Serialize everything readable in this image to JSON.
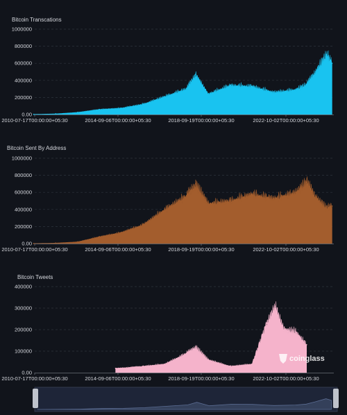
{
  "brand": {
    "watermark": "coinglass"
  },
  "chart_data": [
    {
      "type": "area",
      "title": "Bitcoin Transcations",
      "color": "#19c3f0",
      "ylim": [
        0,
        1000000
      ],
      "yticks": [
        "0.00",
        "200000",
        "400000",
        "600000",
        "800000",
        "1000000"
      ],
      "xticks": [
        "2010-07-17T00:00:00+05:30",
        "2014-09-06T00:00:00+05:30",
        "2018-09-19T00:00:00+05:30",
        "2022-10-02T00:00:00+05:30"
      ],
      "x": [
        "2010-07",
        "2011-07",
        "2012-07",
        "2013-07",
        "2014-07",
        "2015-07",
        "2016-07",
        "2017-07",
        "2017-12",
        "2018-07",
        "2019-07",
        "2020-07",
        "2021-07",
        "2022-07",
        "2023-01",
        "2023-06",
        "2023-12",
        "2024-03"
      ],
      "values": [
        2000,
        8000,
        25000,
        60000,
        75000,
        120000,
        210000,
        300000,
        470000,
        240000,
        340000,
        330000,
        260000,
        290000,
        350000,
        500000,
        700000,
        600000
      ]
    },
    {
      "type": "area",
      "title": "Bitcoin Sent By Address",
      "color": "#a35d2d",
      "ylim": [
        0,
        1000000
      ],
      "yticks": [
        "0.00",
        "200000",
        "400000",
        "600000",
        "800000",
        "1000000"
      ],
      "xticks": [
        "2010-07-17T00:00:00+05:30",
        "2014-09-06T00:00:00+05:30",
        "2018-09-19T00:00:00+05:30",
        "2022-10-02T00:00:00+05:30"
      ],
      "x": [
        "2010-07",
        "2011-07",
        "2012-07",
        "2013-07",
        "2014-07",
        "2015-07",
        "2016-07",
        "2017-07",
        "2017-12",
        "2018-07",
        "2019-07",
        "2020-07",
        "2021-07",
        "2022-07",
        "2023-01",
        "2023-06",
        "2023-12",
        "2024-03"
      ],
      "values": [
        1000,
        6000,
        20000,
        80000,
        130000,
        220000,
        400000,
        560000,
        700000,
        470000,
        500000,
        580000,
        530000,
        600000,
        720000,
        550000,
        420000,
        440000
      ]
    },
    {
      "type": "area",
      "title": "Bitcoin Tweets",
      "color": "#f5b3cb",
      "ylim": [
        0,
        400000
      ],
      "yticks": [
        "0.00",
        "100000",
        "200000",
        "300000",
        "400000"
      ],
      "xticks": [
        "2010-07-17T00:00:00+05:30",
        "2014-09-06T00:00:00+05:30",
        "2018-09-19T00:00:00+05:30",
        "2022-10-02T00:00:00+05:30"
      ],
      "x": [
        "2014-04",
        "2015-07",
        "2016-07",
        "2017-07",
        "2017-12",
        "2018-07",
        "2019-07",
        "2020-07",
        "2021-03",
        "2021-08",
        "2022-01",
        "2022-07",
        "2023-01"
      ],
      "values": [
        20000,
        30000,
        40000,
        90000,
        120000,
        60000,
        30000,
        40000,
        230000,
        300000,
        200000,
        190000,
        130000
      ]
    }
  ]
}
